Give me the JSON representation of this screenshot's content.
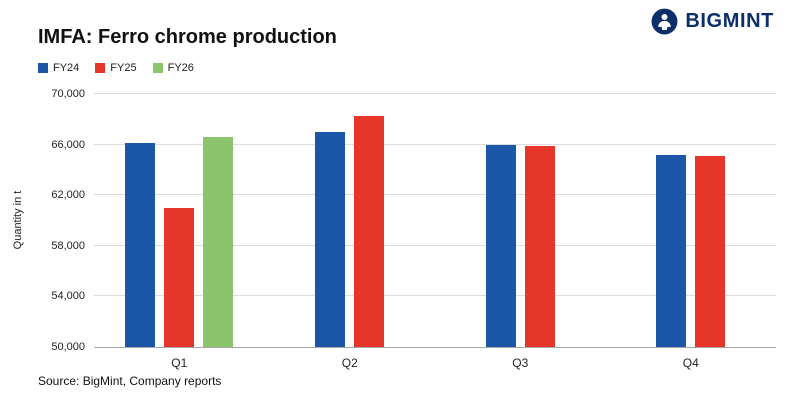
{
  "header": {
    "title": "IMFA: Ferro chrome production",
    "brand": "BIGMINT"
  },
  "footer": {
    "source": "Source: BigMint, Company reports"
  },
  "colors": {
    "brand_navy": "#0c2f6b",
    "fy24_blue": "#1b57a8",
    "fy25_red": "#e53629",
    "fy26_green": "#8bc46d",
    "gridline": "#dcdcdc"
  },
  "chart_data": {
    "type": "bar",
    "title": "IMFA: Ferro chrome production",
    "categories": [
      "Q1",
      "Q2",
      "Q3",
      "Q4"
    ],
    "series": [
      {
        "name": "FY24",
        "color": "#1b57a8",
        "values": [
          66100,
          67000,
          66000,
          65200
        ]
      },
      {
        "name": "FY25",
        "color": "#e53629",
        "values": [
          61000,
          68300,
          65900,
          65100
        ]
      },
      {
        "name": "FY26",
        "color": "#8bc46d",
        "values": [
          66600,
          null,
          null,
          null
        ]
      }
    ],
    "xlabel": "",
    "ylabel": "Quantity in t",
    "ylim": [
      50000,
      70000
    ],
    "yticks": [
      50000,
      54000,
      58000,
      62000,
      66000,
      70000
    ],
    "grid": true,
    "legend_position": "top-left"
  }
}
